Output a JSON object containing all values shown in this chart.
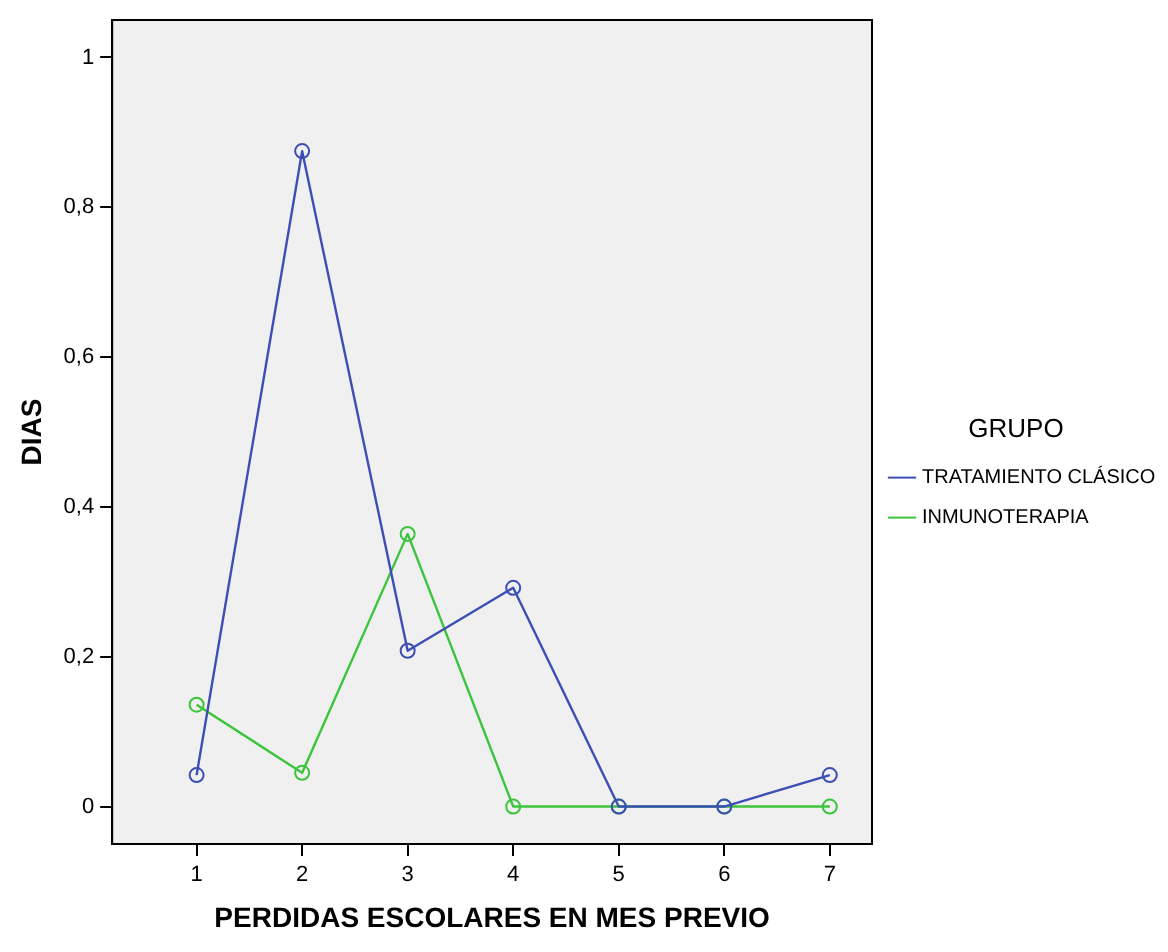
{
  "chart_data": {
    "type": "line",
    "xlabel": "PERDIDAS ESCOLARES EN MES PREVIO",
    "ylabel": "DIAS",
    "legend_title": "GRUPO",
    "x": [
      1,
      2,
      3,
      4,
      5,
      6,
      7
    ],
    "xlim": [
      0.2,
      7.4
    ],
    "xticks": [
      1,
      2,
      3,
      4,
      5,
      6,
      7
    ],
    "ylim": [
      -0.05,
      1.05
    ],
    "yticks": [
      0,
      {
        "value": 0.2,
        "label": "0,2"
      },
      {
        "value": 0.4,
        "label": "0,4"
      },
      {
        "value": 0.6,
        "label": "0,6"
      },
      {
        "value": 0.8,
        "label": "0,8"
      },
      1
    ],
    "series": [
      {
        "name": "TRATAMIENTO CLÁSICO",
        "color": "#3d4fb5",
        "values": [
          0.042,
          0.875,
          0.208,
          0.292,
          0,
          0,
          0.042
        ]
      },
      {
        "name": "INMUNOTERAPIA",
        "color": "#3cc43c",
        "values": [
          0.136,
          0.045,
          0.364,
          0,
          0,
          0,
          0
        ]
      }
    ],
    "marker": "circle",
    "line_style": "solid",
    "grid": false,
    "legend": "right"
  }
}
